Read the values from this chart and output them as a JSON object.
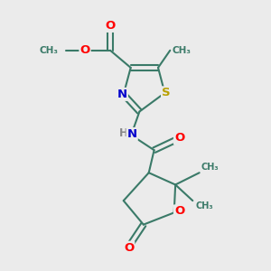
{
  "background_color": "#ebebeb",
  "bond_color": "#3a7a68",
  "bond_width": 1.5,
  "atom_colors": {
    "O": "#ff0000",
    "N": "#0000cc",
    "S": "#b8a000",
    "C": "#3a7a68",
    "H": "#888888"
  },
  "figsize": [
    3.0,
    3.0
  ],
  "dpi": 100,
  "xlim": [
    0,
    10
  ],
  "ylim": [
    0,
    10
  ]
}
